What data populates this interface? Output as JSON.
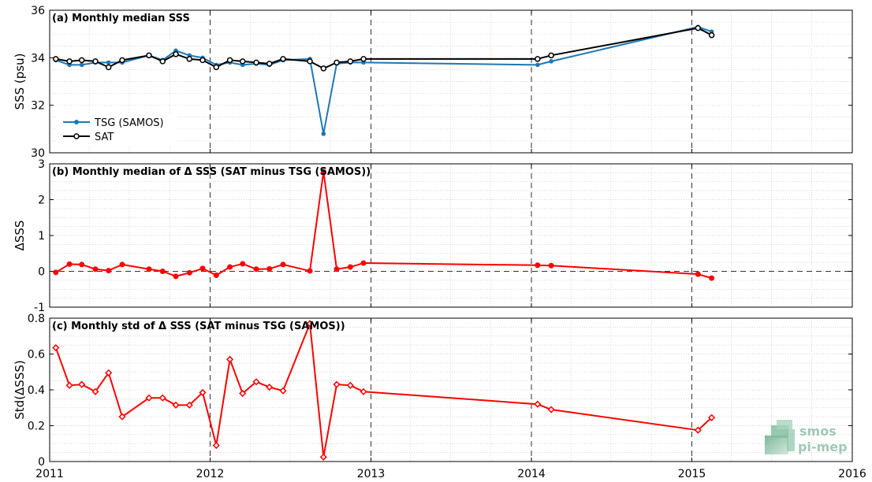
{
  "colors": {
    "tsg": "#1f77b4",
    "sat": "#000000",
    "delta": "#ff0000",
    "logo": "#9fc9b4"
  },
  "logo": {
    "line1": "smos",
    "line2": "pi-mep"
  },
  "x_ticks": [
    "2011",
    "2012",
    "2013",
    "2014",
    "2015",
    "2016"
  ],
  "chart_data": [
    {
      "type": "line",
      "title": "(a) Monthly median SSS",
      "xlabel": "",
      "ylabel": "SSS (psu)",
      "xlim": [
        "2011-01-01",
        "2016-01-01"
      ],
      "ylim": [
        30,
        36
      ],
      "yticks": [
        "30",
        "32",
        "34",
        "36"
      ],
      "grid": true,
      "legend_position": "bottom-left",
      "series": [
        {
          "name": "TSG (SAMOS)",
          "x": [
            "2011-01",
            "2011-02",
            "2011-03",
            "2011-04",
            "2011-05",
            "2011-06",
            "2011-08",
            "2011-09",
            "2011-10",
            "2011-11",
            "2011-12",
            "2012-01",
            "2012-02",
            "2012-03",
            "2012-04",
            "2012-05",
            "2012-06",
            "2012-08",
            "2012-09",
            "2012-10",
            "2012-11",
            "2012-12",
            "2014-01",
            "2014-02",
            "2015-01",
            "2015-02"
          ],
          "values": [
            33.9,
            33.7,
            33.7,
            33.8,
            33.8,
            33.8,
            34.1,
            33.9,
            34.3,
            34.1,
            34.0,
            33.7,
            33.8,
            33.7,
            33.75,
            33.7,
            33.9,
            33.95,
            30.8,
            33.75,
            33.8,
            33.8,
            33.7,
            33.85,
            35.3,
            35.1
          ]
        },
        {
          "name": "SAT",
          "x": [
            "2011-01",
            "2011-02",
            "2011-03",
            "2011-04",
            "2011-05",
            "2011-06",
            "2011-08",
            "2011-09",
            "2011-10",
            "2011-11",
            "2011-12",
            "2012-01",
            "2012-02",
            "2012-03",
            "2012-04",
            "2012-05",
            "2012-06",
            "2012-08",
            "2012-09",
            "2012-10",
            "2012-11",
            "2012-12",
            "2014-01",
            "2014-02",
            "2015-01",
            "2015-02"
          ],
          "values": [
            33.95,
            33.85,
            33.9,
            33.85,
            33.6,
            33.9,
            34.1,
            33.85,
            34.15,
            33.95,
            33.9,
            33.6,
            33.9,
            33.85,
            33.8,
            33.75,
            33.95,
            33.85,
            33.55,
            33.8,
            33.85,
            33.95,
            33.95,
            34.1,
            35.25,
            34.95
          ]
        }
      ]
    },
    {
      "type": "line",
      "title": "(b) Monthly median of Δ SSS (SAT minus TSG (SAMOS))",
      "xlabel": "",
      "ylabel": "ΔSSS",
      "xlim": [
        "2011-01-01",
        "2016-01-01"
      ],
      "ylim": [
        -1,
        3
      ],
      "yticks": [
        "-1",
        "0",
        "1",
        "2",
        "3"
      ],
      "grid": true,
      "series": [
        {
          "name": "",
          "x": [
            "2011-01",
            "2011-02",
            "2011-03",
            "2011-04",
            "2011-05",
            "2011-06",
            "2011-08",
            "2011-09",
            "2011-10",
            "2011-11",
            "2011-12",
            "2012-01",
            "2012-02",
            "2012-03",
            "2012-04",
            "2012-05",
            "2012-06",
            "2012-08",
            "2012-09",
            "2012-10",
            "2012-11",
            "2012-12",
            "2014-01",
            "2014-02",
            "2015-01",
            "2015-02"
          ],
          "values": [
            -0.03,
            0.2,
            0.19,
            0.06,
            0.02,
            0.19,
            0.06,
            0.0,
            -0.14,
            -0.04,
            0.08,
            -0.11,
            0.12,
            0.21,
            0.06,
            0.07,
            0.19,
            0.01,
            2.78,
            0.06,
            0.12,
            0.23,
            0.17,
            0.16,
            -0.08,
            -0.19
          ]
        }
      ]
    },
    {
      "type": "line",
      "title": "(c) Monthly std of Δ SSS (SAT minus TSG (SAMOS))",
      "xlabel": "",
      "ylabel": "Std(ΔSSS)",
      "xlim": [
        "2011-01-01",
        "2016-01-01"
      ],
      "ylim": [
        0,
        0.8
      ],
      "yticks": [
        "0",
        "0.2",
        "0.4",
        "0.6",
        "0.8"
      ],
      "grid": true,
      "series": [
        {
          "name": "",
          "x": [
            "2011-01",
            "2011-02",
            "2011-03",
            "2011-04",
            "2011-05",
            "2011-06",
            "2011-08",
            "2011-09",
            "2011-10",
            "2011-11",
            "2011-12",
            "2012-01",
            "2012-02",
            "2012-03",
            "2012-04",
            "2012-05",
            "2012-06",
            "2012-08",
            "2012-09",
            "2012-10",
            "2012-11",
            "2012-12",
            "2014-01",
            "2014-02",
            "2015-01",
            "2015-02"
          ],
          "values": [
            0.635,
            0.425,
            0.43,
            0.39,
            0.495,
            0.25,
            0.355,
            0.355,
            0.315,
            0.315,
            0.385,
            0.09,
            0.57,
            0.38,
            0.445,
            0.415,
            0.395,
            0.77,
            0.025,
            0.43,
            0.425,
            0.39,
            0.32,
            0.29,
            0.175,
            0.245
          ]
        }
      ]
    }
  ]
}
